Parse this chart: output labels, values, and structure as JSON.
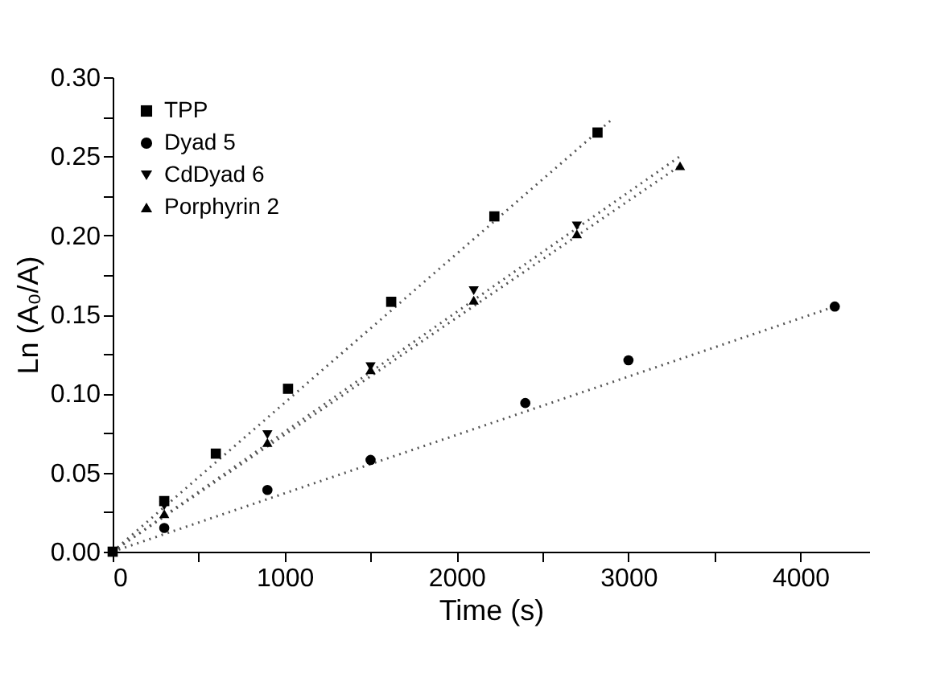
{
  "chart_data": {
    "type": "scatter",
    "xlabel": "Time (s)",
    "ylabel": "Ln (A₀/A)",
    "xlim": [
      0,
      4400
    ],
    "ylim": [
      0,
      0.3
    ],
    "xticks": [
      0,
      {
        "value": 500,
        "label": null
      },
      1000,
      {
        "value": 1500,
        "label": null
      },
      2000,
      {
        "value": 2500,
        "label": null
      },
      3000,
      {
        "value": 3500,
        "label": null
      },
      4000
    ],
    "yticks": [
      {
        "value": 0,
        "label": "0.00"
      },
      {
        "value": 0.025,
        "label": null
      },
      {
        "value": 0.05,
        "label": "0.05"
      },
      {
        "value": 0.075,
        "label": null
      },
      {
        "value": 0.1,
        "label": "0.10"
      },
      {
        "value": 0.125,
        "label": null
      },
      {
        "value": 0.15,
        "label": "0.15"
      },
      {
        "value": 0.175,
        "label": null
      },
      {
        "value": 0.2,
        "label": "0.20"
      },
      {
        "value": 0.225,
        "label": null
      },
      {
        "value": 0.25,
        "label": "0.25"
      },
      {
        "value": 0.275,
        "label": null
      },
      {
        "value": 0.3,
        "label": "0.30"
      }
    ],
    "grid": false,
    "legend": "top left",
    "series": [
      {
        "name": "TPP",
        "marker": "square",
        "color": "#000000",
        "x": [
          0,
          300,
          600,
          1020,
          1620,
          2220,
          2820
        ],
        "values": [
          0,
          0.032,
          0.062,
          0.103,
          0.158,
          0.212,
          0.265
        ]
      },
      {
        "name": "Dyad 5",
        "marker": "circle",
        "color": "#000000",
        "x": [
          300,
          900,
          1500,
          2400,
          3000,
          4200
        ],
        "values": [
          0.015,
          0.039,
          0.058,
          0.094,
          0.121,
          0.155
        ]
      },
      {
        "name": "CdDyad 6",
        "marker": "triangle-down",
        "color": "#000000",
        "x": [
          300,
          900,
          1500,
          2100,
          2700
        ],
        "values": [
          0.029,
          0.074,
          0.117,
          0.165,
          0.206
        ]
      },
      {
        "name": "Porphyrin 2",
        "marker": "triangle",
        "color": "#000000",
        "x": [
          300,
          900,
          1500,
          2100,
          2700,
          3300
        ],
        "values": [
          0.024,
          0.069,
          0.115,
          0.159,
          0.201,
          0.244
        ]
      },
      {
        "type": "line",
        "line_style": "dotted",
        "color": "#555555",
        "x": [
          0,
          2900
        ],
        "values": [
          0,
          0.273
        ]
      },
      {
        "type": "line",
        "line_style": "dotted",
        "color": "#555555",
        "x": [
          0,
          4200
        ],
        "values": [
          0,
          0.155
        ]
      },
      {
        "type": "line",
        "line_style": "dotted",
        "color": "#555555",
        "x": [
          0,
          3300
        ],
        "values": [
          0,
          0.25
        ]
      },
      {
        "type": "line",
        "line_style": "dotted",
        "color": "#555555",
        "x": [
          0,
          3300
        ],
        "values": [
          0,
          0.244
        ]
      }
    ]
  }
}
